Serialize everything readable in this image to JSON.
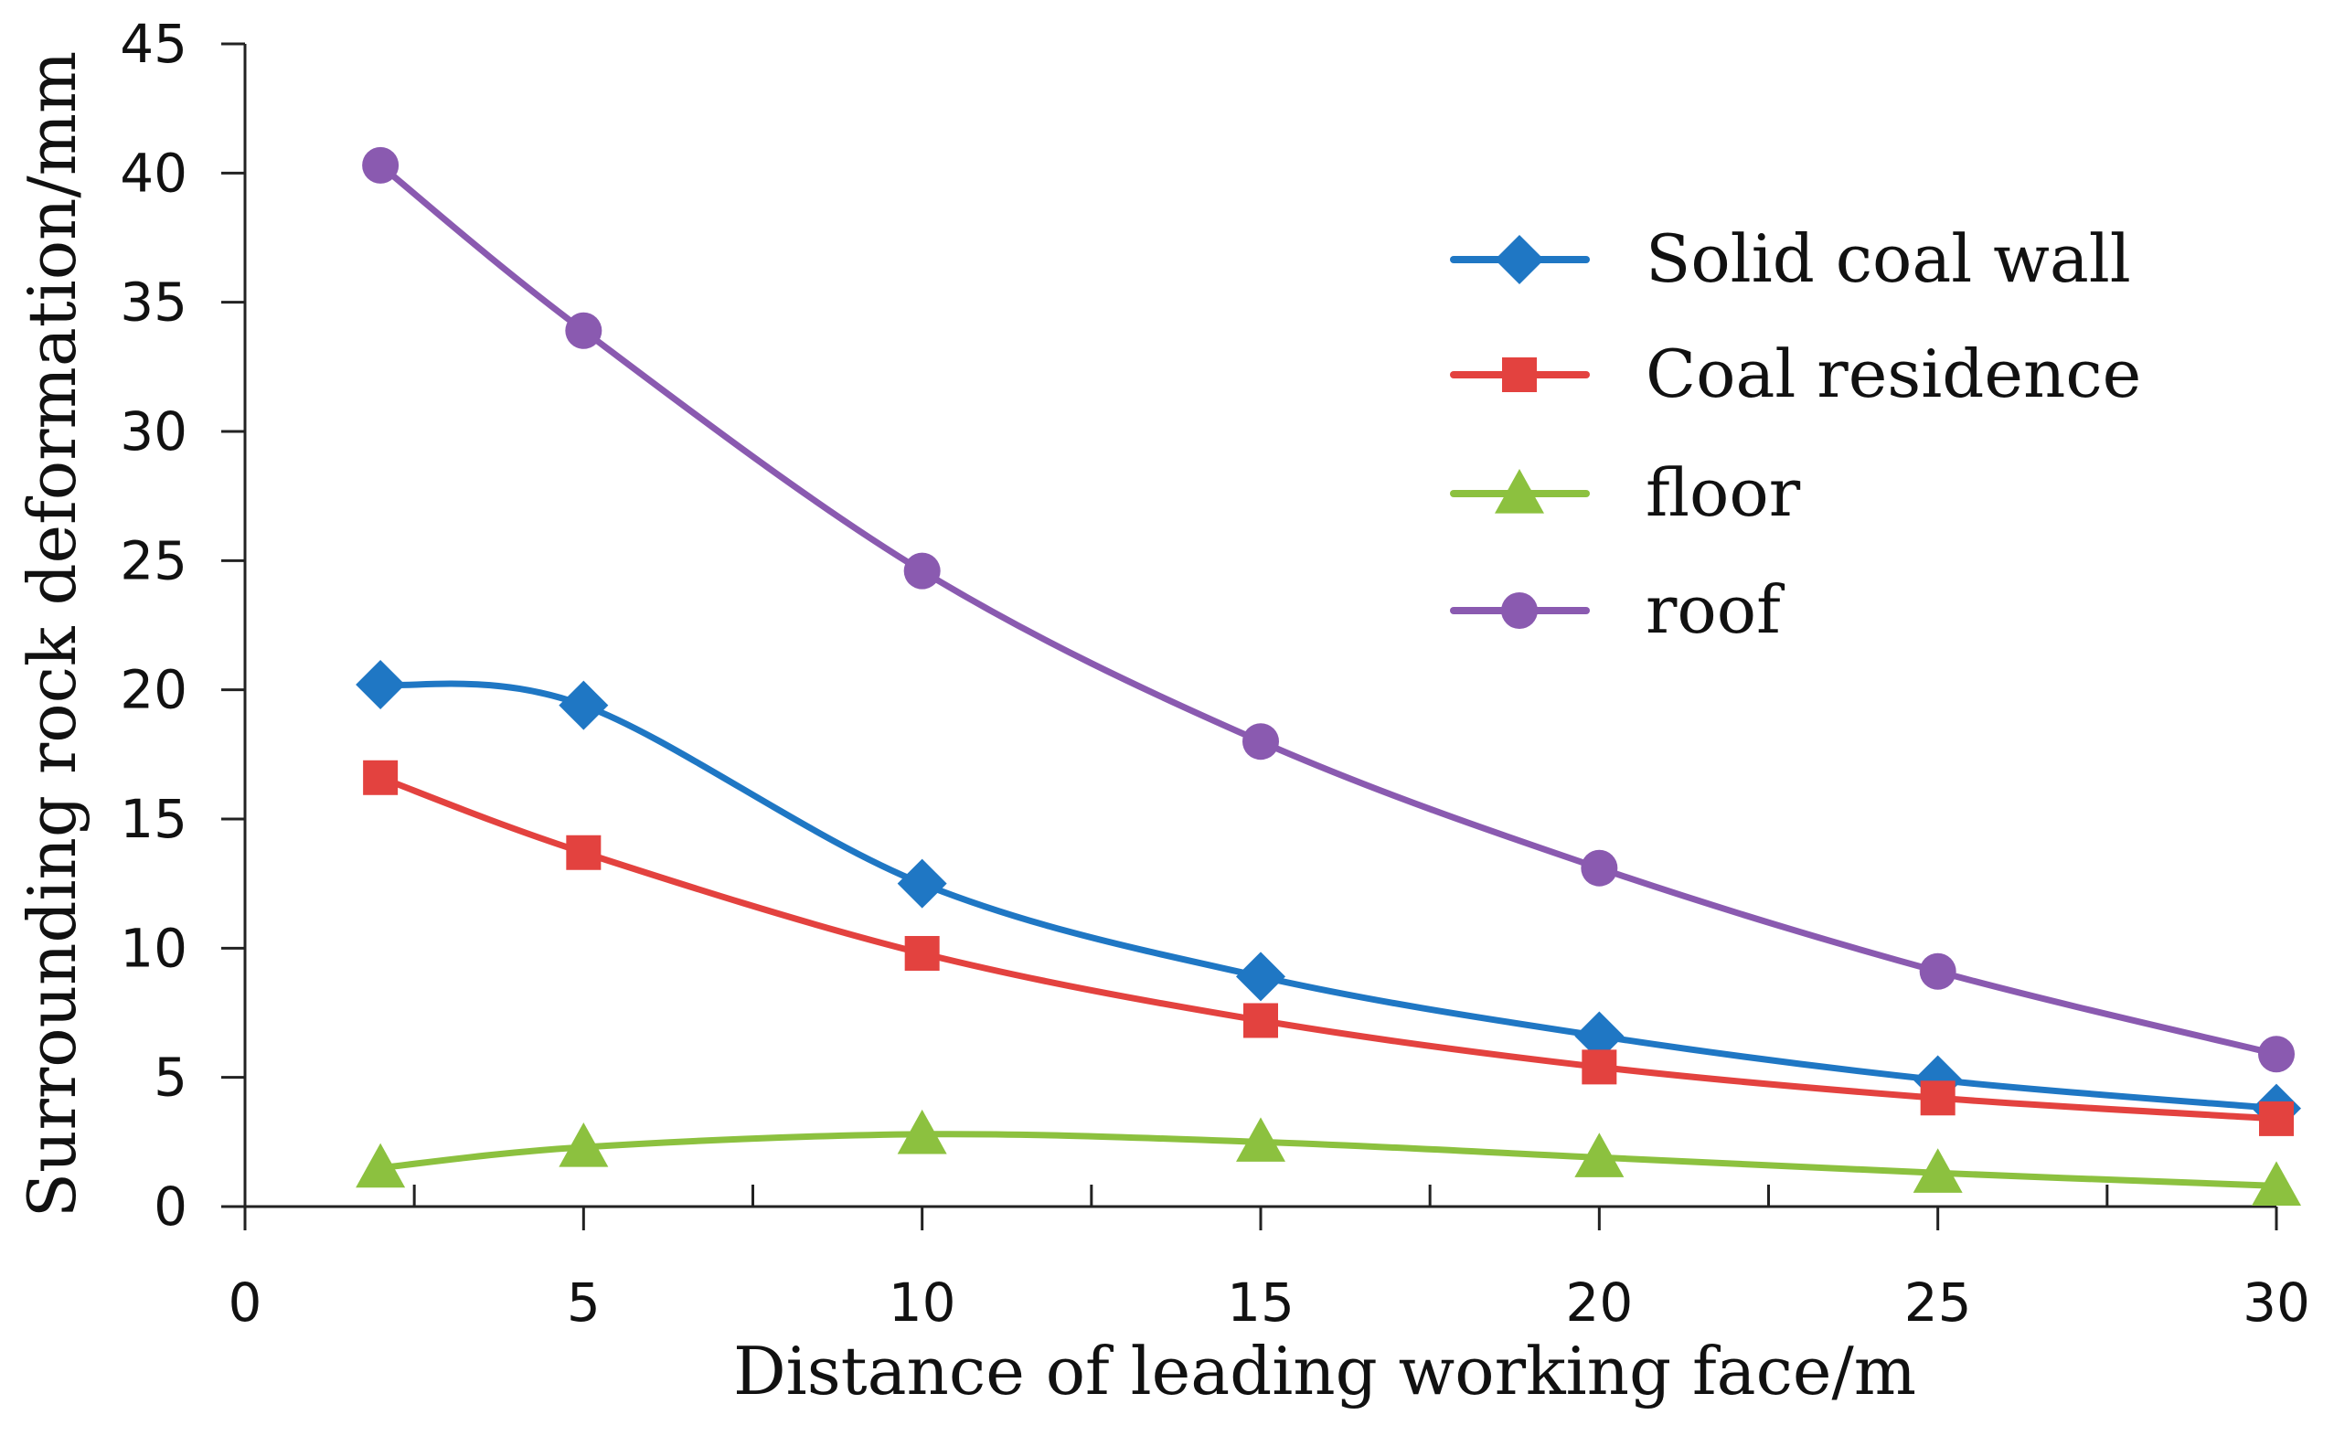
{
  "chart_data": {
    "type": "line",
    "title": "",
    "xlabel": "Distance of leading working face/m",
    "ylabel": "Surrounding rock deformation/mm",
    "xlim": [
      0,
      30
    ],
    "ylim": [
      0,
      45
    ],
    "x_ticks": [
      0,
      5,
      10,
      15,
      20,
      25,
      30
    ],
    "x_minor_ticks": [
      2.5,
      7.5,
      12.5,
      17.5,
      22.5,
      27.5
    ],
    "y_ticks": [
      0,
      5,
      10,
      15,
      20,
      25,
      30,
      35,
      40,
      45
    ],
    "grid": false,
    "legend_position": "top-right",
    "x": [
      2,
      5,
      10,
      15,
      20,
      25,
      30
    ],
    "series": [
      {
        "name": "Solid coal wall",
        "color": "#1f77c4",
        "marker": "diamond",
        "values": [
          20.2,
          19.4,
          12.5,
          8.9,
          6.6,
          4.9,
          3.8
        ]
      },
      {
        "name": "Coal residence",
        "color": "#e3423f",
        "marker": "square",
        "values": [
          16.6,
          13.7,
          9.8,
          7.2,
          5.4,
          4.2,
          3.4
        ]
      },
      {
        "name": "floor",
        "color": "#8cc13f",
        "marker": "triangle",
        "values": [
          1.5,
          2.3,
          2.8,
          2.5,
          1.9,
          1.3,
          0.8
        ]
      },
      {
        "name": "roof",
        "color": "#8a5ab0",
        "marker": "circle",
        "values": [
          40.3,
          33.9,
          24.6,
          18.0,
          13.1,
          9.1,
          5.9
        ]
      }
    ]
  }
}
